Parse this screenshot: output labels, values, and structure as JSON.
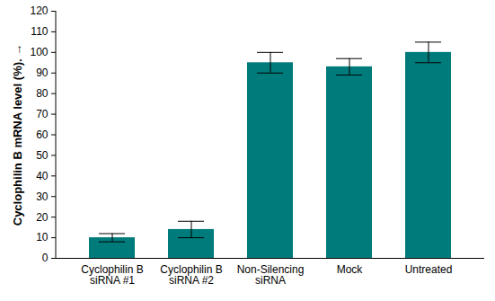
{
  "chart_data": {
    "type": "bar",
    "categories": [
      "Cyclophilin B siRNA #1",
      "Cyclophilin B siRNA #2",
      "Non-Silencing siRNA",
      "Mock",
      "Untreated"
    ],
    "values": [
      10,
      14,
      95,
      93,
      100
    ],
    "errors": [
      2,
      4,
      5,
      4,
      5
    ],
    "color": "#007b7b",
    "ylabel": "Cyclophilin B mRNA level (%).",
    "ylim": [
      0,
      120
    ],
    "yticks": [
      0,
      10,
      20,
      30,
      40,
      50,
      60,
      70,
      80,
      90,
      100,
      110,
      120
    ],
    "grid": false
  }
}
